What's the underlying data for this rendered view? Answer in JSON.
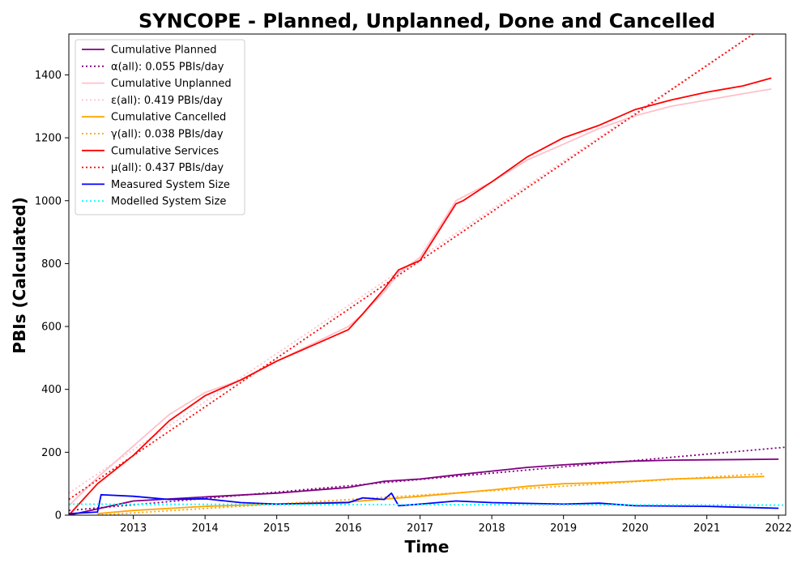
{
  "chart_data": {
    "type": "line",
    "title": "SYNCOPE - Planned, Unplanned, Done  and Cancelled",
    "xlabel": "Time",
    "ylabel": "PBIs (Calculated)",
    "xlim": [
      2012.1,
      2022.1
    ],
    "ylim": [
      0,
      1530
    ],
    "x_ticks": [
      "2013",
      "2014",
      "2015",
      "2016",
      "2017",
      "2018",
      "2019",
      "2020",
      "2021",
      "2022"
    ],
    "y_ticks": [
      "0",
      "200",
      "400",
      "600",
      "800",
      "1000",
      "1200",
      "1400"
    ],
    "legend_position": "top-left",
    "grid": false,
    "series": [
      {
        "name": "Cumulative Planned",
        "color": "#800080",
        "style": "solid",
        "x": [
          2012.1,
          2013.0,
          2014.0,
          2015.0,
          2016.0,
          2016.5,
          2017.0,
          2017.5,
          2018.0,
          2018.5,
          2019.0,
          2019.5,
          2020.0,
          2020.5,
          2021.0,
          2021.5,
          2022.0
        ],
        "y": [
          0,
          45,
          58,
          70,
          88,
          108,
          115,
          128,
          140,
          152,
          160,
          167,
          172,
          175,
          176,
          177,
          178
        ]
      },
      {
        "name": "α(all): 0.055 PBIs/day",
        "color": "#800080",
        "style": "dotted",
        "x": [
          2012.1,
          2022.1
        ],
        "y": [
          15,
          216
        ]
      },
      {
        "name": "Cumulative Unplanned",
        "color": "#ffc0cb",
        "style": "solid",
        "x": [
          2012.1,
          2012.5,
          2013.0,
          2013.5,
          2014.0,
          2014.5,
          2015.0,
          2015.5,
          2016.0,
          2016.2,
          2016.5,
          2016.7,
          2017.0,
          2017.5,
          2018.0,
          2018.5,
          2019.0,
          2019.5,
          2020.0,
          2020.5,
          2021.0,
          2021.5,
          2021.9
        ],
        "y": [
          30,
          120,
          220,
          320,
          390,
          430,
          490,
          545,
          600,
          640,
          710,
          770,
          820,
          1000,
          1060,
          1130,
          1180,
          1230,
          1270,
          1300,
          1320,
          1340,
          1355
        ]
      },
      {
        "name": "ε(all): 0.419 PBIs/day",
        "color": "#ffc0cb",
        "style": "dotted",
        "x": [
          2012.1,
          2022.1
        ],
        "y": [
          70,
          1600
        ]
      },
      {
        "name": "Cumulative Cancelled",
        "color": "#ffa500",
        "style": "solid",
        "x": [
          2012.5,
          2013.0,
          2014.0,
          2015.0,
          2016.0,
          2017.0,
          2017.5,
          2018.0,
          2018.5,
          2019.0,
          2019.5,
          2020.0,
          2020.5,
          2021.0,
          2021.8
        ],
        "y": [
          5,
          15,
          28,
          35,
          42,
          60,
          70,
          80,
          92,
          100,
          103,
          108,
          115,
          118,
          123
        ]
      },
      {
        "name": "γ(all): 0.038 PBIs/day",
        "color": "#ffa500",
        "style": "dotted",
        "x": [
          2012.5,
          2021.8
        ],
        "y": [
          0,
          132
        ]
      },
      {
        "name": "Cumulative Services",
        "color": "#ff0000",
        "style": "solid",
        "x": [
          2012.1,
          2012.5,
          2013.0,
          2013.5,
          2014.0,
          2014.5,
          2015.0,
          2015.5,
          2016.0,
          2016.2,
          2016.5,
          2016.7,
          2017.0,
          2017.5,
          2017.6,
          2018.0,
          2018.5,
          2019.0,
          2019.5,
          2020.0,
          2020.5,
          2021.0,
          2021.5,
          2021.9
        ],
        "y": [
          0,
          100,
          190,
          300,
          380,
          430,
          490,
          540,
          590,
          640,
          720,
          780,
          810,
          990,
          1000,
          1060,
          1140,
          1200,
          1240,
          1290,
          1320,
          1345,
          1365,
          1390
        ]
      },
      {
        "name": "μ(all): 0.437 PBIs/day",
        "color": "#ff0000",
        "style": "dotted",
        "x": [
          2012.1,
          2022.1
        ],
        "y": [
          50,
          1600
        ]
      },
      {
        "name": "Measured System Size",
        "color": "#0000ff",
        "style": "solid",
        "x": [
          2012.1,
          2012.5,
          2012.55,
          2013.0,
          2013.5,
          2014.0,
          2014.5,
          2015.0,
          2016.0,
          2016.2,
          2016.5,
          2016.6,
          2016.7,
          2017.0,
          2017.5,
          2018.0,
          2019.0,
          2019.5,
          2020.0,
          2021.0,
          2021.5,
          2022.0
        ],
        "y": [
          5,
          10,
          65,
          60,
          50,
          52,
          40,
          35,
          40,
          55,
          50,
          70,
          30,
          35,
          45,
          40,
          35,
          38,
          30,
          28,
          25,
          22
        ]
      },
      {
        "name": "Modelled System Size",
        "color": "#00ffff",
        "style": "dotted",
        "x": [
          2012.1,
          2022.1
        ],
        "y": [
          35,
          32
        ]
      }
    ]
  }
}
